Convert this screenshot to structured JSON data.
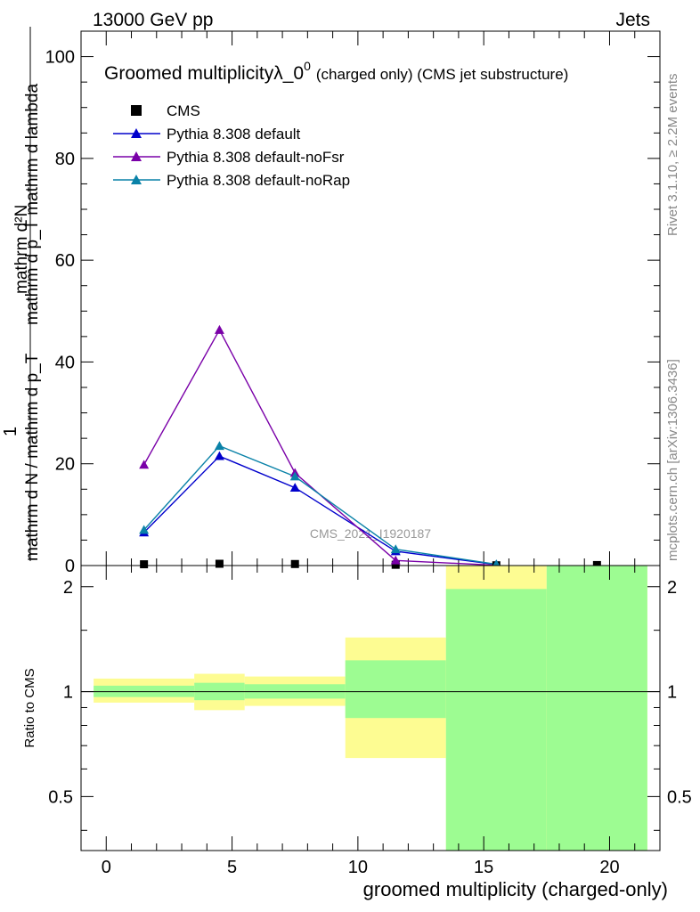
{
  "header": {
    "left": "13000 GeV pp",
    "right": "Jets"
  },
  "side_labels": {
    "top": "Rivet 3.1.10, ≥ 2.2M events",
    "bottom": "mcplots.cern.ch [arXiv:1306.3436]"
  },
  "chart_data": [
    {
      "type": "line",
      "panel": "main",
      "title": "Groomed multiplicityλ_0",
      "title_sup": "0",
      "title_suffix": "(charged only) (CMS jet substructure)",
      "ylabel_num": "mathrm d²N",
      "ylabel_den": "mathrm d p_T mathrm d lambda",
      "ylabel_pre_den": "mathrm d N / mathrm d p_T",
      "ylabel_one": "1",
      "watermark": "CMS_2021_I1920187",
      "xlim": [
        -1,
        22
      ],
      "ylim": [
        0,
        105
      ],
      "yticks": [
        0,
        20,
        40,
        60,
        80,
        100
      ],
      "legend_position": "top-left",
      "series": [
        {
          "name": "CMS",
          "marker": "square",
          "color": "#000000",
          "x": [
            1.5,
            4.5,
            7.5,
            11.5,
            15.5,
            19.5
          ],
          "y": [
            0.25,
            0.35,
            0.3,
            0.15,
            0.05,
            0.1
          ]
        },
        {
          "name": "Pythia 8.308 default",
          "marker": "triangle",
          "color": "#0000cc",
          "x": [
            1.5,
            4.5,
            7.5,
            11.5,
            15.5
          ],
          "y": [
            6.5,
            21.5,
            15.3,
            2.8,
            0.2
          ]
        },
        {
          "name": "Pythia 8.308 default-noFsr",
          "marker": "triangle",
          "color": "#7a00a8",
          "x": [
            1.5,
            4.5,
            7.5,
            11.5,
            15.5
          ],
          "y": [
            19.8,
            46.3,
            18.2,
            1.0,
            0.05
          ]
        },
        {
          "name": "Pythia 8.308 default-noRap",
          "marker": "triangle",
          "color": "#0a82a8",
          "x": [
            1.5,
            4.5,
            7.5,
            11.5,
            15.5
          ],
          "y": [
            7.0,
            23.5,
            17.5,
            3.2,
            0.25
          ]
        }
      ]
    },
    {
      "type": "band",
      "panel": "ratio",
      "ylabel": "Ratio to CMS",
      "xlabel": "groomed multiplicity (charged-only)",
      "xlim": [
        -1,
        22
      ],
      "ylim": [
        0.35,
        2.3
      ],
      "yscale": "log",
      "yticks": [
        0.5,
        1,
        2
      ],
      "xticks": [
        0,
        5,
        10,
        15,
        20
      ],
      "reference": 1,
      "bins": [
        {
          "x0": -0.5,
          "x1": 3.5,
          "stat": [
            0.965,
            1.04
          ],
          "total": [
            0.93,
            1.09
          ]
        },
        {
          "x0": 3.5,
          "x1": 5.5,
          "stat": [
            0.945,
            1.06
          ],
          "total": [
            0.885,
            1.125
          ]
        },
        {
          "x0": 5.5,
          "x1": 9.5,
          "stat": [
            0.955,
            1.05
          ],
          "total": [
            0.91,
            1.105
          ]
        },
        {
          "x0": 9.5,
          "x1": 13.5,
          "stat": [
            0.84,
            1.23
          ],
          "total": [
            0.645,
            1.43
          ]
        },
        {
          "x0": 13.5,
          "x1": 17.5,
          "stat": [
            0.35,
            1.97
          ],
          "total": [
            0.35,
            2.3
          ]
        },
        {
          "x0": 17.5,
          "x1": 21.5,
          "stat": [
            0.35,
            2.3
          ],
          "total": [
            0.35,
            2.3
          ]
        }
      ],
      "colors": {
        "stat": "#9dfc92",
        "total": "#fdfc92"
      }
    }
  ]
}
